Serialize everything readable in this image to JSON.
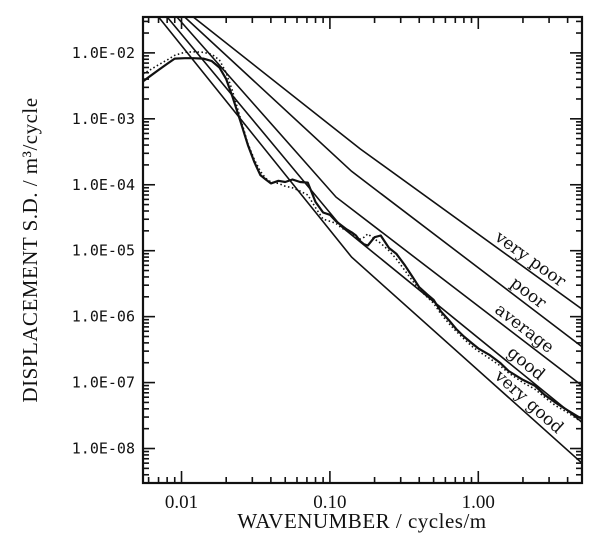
{
  "chart_data": {
    "type": "line",
    "title": "",
    "xlabel": "WAVENUMBER / cycles/m",
    "ylabel": "DISPLACEMENT S.D. / m³/cycle",
    "xscale": "log",
    "yscale": "log",
    "xlim": [
      0.0055,
      5.0
    ],
    "ylim": [
      3e-09,
      0.035
    ],
    "xticks": [
      0.01,
      0.1,
      1.0
    ],
    "xtick_labels": [
      "0.01",
      "0.10",
      "1.00"
    ],
    "yticks": [
      0.01,
      0.001,
      0.0001,
      1e-05,
      1e-06,
      1e-07,
      1e-08
    ],
    "ytick_labels": [
      "1.0E-02",
      "1.0E-03",
      "1.0E-04",
      "1.0E-05",
      "1.0E-06",
      "1.0E-07",
      "1.0E-08"
    ],
    "grid": false,
    "reference_lines": [
      {
        "label": "very poor",
        "points": [
          [
            0.012,
            0.035
          ],
          [
            0.16,
            0.00035
          ],
          [
            5.0,
            1.3e-06
          ]
        ]
      },
      {
        "label": "poor",
        "points": [
          [
            0.0105,
            0.035
          ],
          [
            0.14,
            0.00016
          ],
          [
            5.0,
            3.5e-07
          ]
        ]
      },
      {
        "label": "average",
        "points": [
          [
            0.0093,
            0.035
          ],
          [
            0.11,
            6.5e-05
          ],
          [
            5.0,
            9e-08
          ]
        ]
      },
      {
        "label": "good",
        "points": [
          [
            0.008,
            0.035
          ],
          [
            0.12,
            2.3e-05
          ],
          [
            5.0,
            2.5e-08
          ]
        ]
      },
      {
        "label": "very good",
        "points": [
          [
            0.007,
            0.035
          ],
          [
            0.14,
            8e-06
          ],
          [
            5.0,
            6e-09
          ]
        ]
      }
    ],
    "series": [
      {
        "style": "solid",
        "x": [
          0.0055,
          0.0062,
          0.007,
          0.008,
          0.009,
          0.0105,
          0.012,
          0.014,
          0.016,
          0.018,
          0.02,
          0.022,
          0.025,
          0.028,
          0.031,
          0.034,
          0.037,
          0.04,
          0.045,
          0.05,
          0.056,
          0.063,
          0.071,
          0.08,
          0.09,
          0.1,
          0.11,
          0.12,
          0.13,
          0.14,
          0.15,
          0.16,
          0.17,
          0.18,
          0.2,
          0.22,
          0.25,
          0.28,
          0.32,
          0.36,
          0.4,
          0.45,
          0.5,
          0.56,
          0.63,
          0.71,
          0.8,
          0.9,
          1.0,
          1.2,
          1.4,
          1.6,
          2.0,
          2.4,
          2.8,
          3.3,
          4.0,
          5.0
        ],
        "y": [
          0.0037,
          0.0045,
          0.0055,
          0.0068,
          0.0082,
          0.0083,
          0.0083,
          0.0082,
          0.0075,
          0.006,
          0.004,
          0.0022,
          0.0009,
          0.0004,
          0.00022,
          0.00014,
          0.00012,
          0.000105,
          0.000115,
          0.00011,
          0.00012,
          0.00011,
          0.000108,
          5.5e-05,
          3.8e-05,
          3.5e-05,
          2.8e-05,
          2.4e-05,
          2.1e-05,
          1.9e-05,
          1.7e-05,
          1.4e-05,
          1.25e-05,
          1.2e-05,
          1.6e-05,
          1.7e-05,
          1.1e-05,
          9e-06,
          6e-06,
          4e-06,
          2.8e-06,
          2.2e-06,
          1.8e-06,
          1.2e-06,
          9e-07,
          6.5e-07,
          5e-07,
          4e-07,
          3.3e-07,
          2.6e-07,
          2e-07,
          1.5e-07,
          1.1e-07,
          9e-08,
          6.5e-08,
          5e-08,
          3.8e-08,
          2.8e-08
        ]
      },
      {
        "style": "dotted",
        "x": [
          0.0055,
          0.0062,
          0.007,
          0.008,
          0.009,
          0.0105,
          0.012,
          0.014,
          0.016,
          0.018,
          0.02,
          0.022,
          0.025,
          0.028,
          0.031,
          0.034,
          0.037,
          0.04,
          0.045,
          0.05,
          0.056,
          0.063,
          0.071,
          0.08,
          0.09,
          0.1,
          0.11,
          0.12,
          0.13,
          0.14,
          0.15,
          0.16,
          0.17,
          0.18,
          0.2,
          0.22,
          0.25,
          0.28,
          0.32,
          0.36,
          0.4,
          0.45,
          0.5,
          0.56,
          0.63,
          0.71,
          0.8,
          0.9,
          1.0,
          1.2,
          1.4,
          1.6,
          2.0,
          2.4,
          2.8,
          3.3,
          4.0,
          5.0
        ],
        "y": [
          0.0048,
          0.0056,
          0.0066,
          0.0078,
          0.0092,
          0.0102,
          0.0104,
          0.0102,
          0.0095,
          0.0078,
          0.005,
          0.0027,
          0.001,
          0.00042,
          0.00024,
          0.00016,
          0.000125,
          0.00011,
          0.000105,
          9.5e-05,
          9e-05,
          8e-05,
          7e-05,
          4.5e-05,
          3e-05,
          2.8e-05,
          2.6e-05,
          2.2e-05,
          2e-05,
          1.8e-05,
          1.6e-05,
          1.5e-05,
          1.6e-05,
          1.8e-05,
          1.5e-05,
          1.3e-05,
          1e-05,
          7.5e-06,
          5e-06,
          3.5e-06,
          2.6e-06,
          2e-06,
          1.6e-06,
          1.1e-06,
          8e-07,
          6e-07,
          4.6e-07,
          3.6e-07,
          3e-07,
          2.3e-07,
          1.8e-07,
          1.4e-07,
          1e-07,
          8e-08,
          6e-08,
          4.5e-08,
          3.5e-08,
          2.5e-08
        ]
      }
    ]
  }
}
